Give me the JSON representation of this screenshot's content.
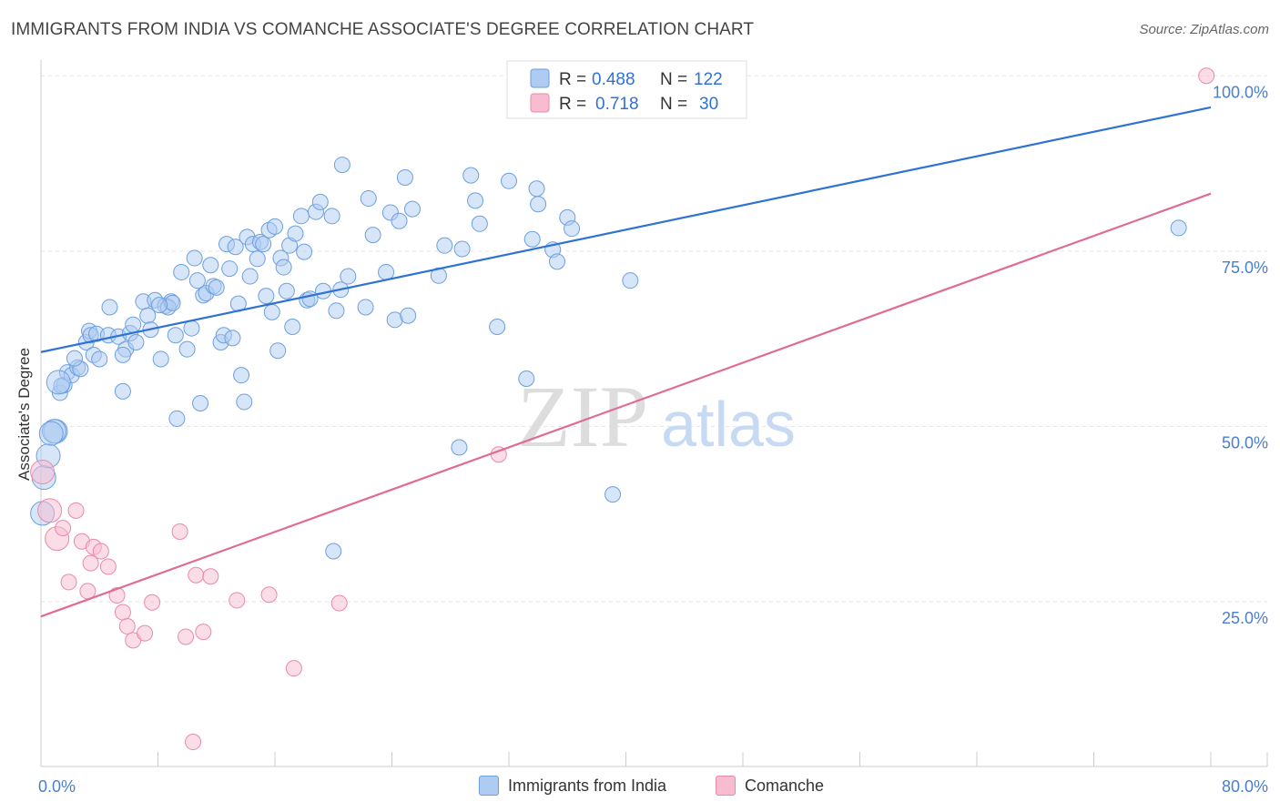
{
  "header": {
    "title": "IMMIGRANTS FROM INDIA VS COMANCHE ASSOCIATE'S DEGREE CORRELATION CHART",
    "source": "Source: ZipAtlas.com"
  },
  "watermark": {
    "zip": "ZIP",
    "atlas": "atlas"
  },
  "colors": {
    "india_fill": "#aecbf2",
    "india_stroke": "#6d9fe0",
    "india_line": "#2f72d4",
    "comanche_fill": "#f8bcd0",
    "comanche_stroke": "#e98aa9",
    "comanche_line": "#e06b94",
    "axis_label": "#4a7fd0"
  },
  "legend": {
    "rows": [
      {
        "r_label": "R =",
        "r_value": "0.488",
        "n_label": "N =",
        "n_value": "122"
      },
      {
        "r_label": "R =",
        "r_value": "0.718",
        "n_label": "N =",
        "n_value": "30"
      }
    ]
  },
  "bottom_legend": [
    "Immigrants from India",
    "Comanche"
  ],
  "chart_data": {
    "type": "scatter",
    "title": "IMMIGRANTS FROM INDIA VS COMANCHE ASSOCIATE'S DEGREE CORRELATION CHART",
    "xlabel": "",
    "ylabel": "Associate's Degree",
    "xlim": [
      0,
      80
    ],
    "ylim": [
      1.5,
      102.5
    ],
    "x_tick_labels": [
      "0.0%",
      "80.0%"
    ],
    "y_tick_labels": [
      "100.0%",
      "75.0%",
      "50.0%",
      "25.0%"
    ],
    "y_ticks": [
      100,
      75,
      50,
      25
    ],
    "grid": "horizontal dashed",
    "legend_position": "top-center",
    "series": [
      {
        "name": "Immigrants from India",
        "r": 0.488,
        "n": 122,
        "trend": {
          "x": [
            0,
            80
          ],
          "y": [
            60.6,
            95.5
          ]
        },
        "points": [
          [
            0.1,
            37.6
          ],
          [
            0.2,
            42.7
          ],
          [
            0.5,
            45.8
          ],
          [
            1.0,
            49.3
          ],
          [
            0.9,
            49.3
          ],
          [
            1.3,
            54.8
          ],
          [
            1.6,
            55.9
          ],
          [
            1.4,
            55.8
          ],
          [
            1.8,
            57.7
          ],
          [
            2.1,
            57.3
          ],
          [
            2.5,
            58.4
          ],
          [
            2.7,
            58.2
          ],
          [
            2.3,
            59.7
          ],
          [
            3.1,
            62.0
          ],
          [
            3.6,
            60.2
          ],
          [
            3.3,
            63.6
          ],
          [
            3.4,
            63.0
          ],
          [
            3.8,
            63.2
          ],
          [
            4.0,
            59.6
          ],
          [
            4.6,
            63.0
          ],
          [
            5.3,
            62.8
          ],
          [
            5.8,
            61.0
          ],
          [
            4.7,
            67.0
          ],
          [
            5.6,
            60.2
          ],
          [
            6.1,
            63.3
          ],
          [
            6.3,
            64.5
          ],
          [
            6.5,
            62.0
          ],
          [
            7.0,
            67.8
          ],
          [
            7.3,
            65.8
          ],
          [
            7.5,
            63.8
          ],
          [
            7.8,
            68.0
          ],
          [
            8.2,
            59.6
          ],
          [
            8.5,
            67.2
          ],
          [
            8.9,
            67.8
          ],
          [
            8.7,
            67.0
          ],
          [
            9.0,
            67.6
          ],
          [
            9.2,
            63.0
          ],
          [
            9.6,
            72.0
          ],
          [
            10.0,
            61.0
          ],
          [
            10.3,
            64.0
          ],
          [
            10.5,
            74.0
          ],
          [
            10.7,
            70.8
          ],
          [
            10.9,
            53.3
          ],
          [
            11.1,
            68.7
          ],
          [
            11.3,
            69.0
          ],
          [
            11.6,
            73.0
          ],
          [
            11.8,
            70.0
          ],
          [
            12.0,
            69.8
          ],
          [
            12.3,
            62.0
          ],
          [
            12.5,
            63.0
          ],
          [
            12.7,
            76.0
          ],
          [
            12.9,
            72.5
          ],
          [
            13.1,
            62.6
          ],
          [
            13.3,
            75.6
          ],
          [
            13.5,
            67.5
          ],
          [
            13.7,
            57.3
          ],
          [
            13.9,
            53.5
          ],
          [
            14.1,
            77.0
          ],
          [
            14.3,
            71.4
          ],
          [
            14.5,
            76.0
          ],
          [
            14.8,
            73.9
          ],
          [
            15.0,
            76.3
          ],
          [
            15.2,
            76.0
          ],
          [
            15.4,
            68.6
          ],
          [
            15.6,
            78.0
          ],
          [
            15.8,
            66.3
          ],
          [
            16.0,
            78.5
          ],
          [
            16.2,
            60.8
          ],
          [
            16.4,
            74.0
          ],
          [
            16.6,
            72.7
          ],
          [
            16.8,
            69.3
          ],
          [
            17.0,
            75.8
          ],
          [
            17.2,
            64.2
          ],
          [
            17.4,
            77.5
          ],
          [
            17.8,
            80.0
          ],
          [
            18.0,
            74.9
          ],
          [
            18.2,
            68.0
          ],
          [
            18.4,
            68.2
          ],
          [
            18.8,
            80.6
          ],
          [
            19.1,
            82.0
          ],
          [
            19.3,
            69.3
          ],
          [
            19.9,
            80.0
          ],
          [
            20.2,
            66.5
          ],
          [
            20.6,
            87.3
          ],
          [
            21.0,
            71.4
          ],
          [
            22.2,
            67.0
          ],
          [
            22.4,
            82.5
          ],
          [
            22.7,
            77.3
          ],
          [
            23.6,
            72.0
          ],
          [
            23.9,
            80.5
          ],
          [
            24.2,
            65.2
          ],
          [
            24.5,
            79.3
          ],
          [
            24.9,
            85.5
          ],
          [
            25.1,
            65.8
          ],
          [
            25.4,
            81.0
          ],
          [
            27.2,
            71.5
          ],
          [
            27.6,
            75.8
          ],
          [
            28.6,
            47.0
          ],
          [
            28.8,
            75.3
          ],
          [
            29.4,
            85.8
          ],
          [
            29.7,
            82.2
          ],
          [
            30.0,
            78.9
          ],
          [
            31.2,
            64.2
          ],
          [
            32.0,
            85.0
          ],
          [
            33.2,
            56.8
          ],
          [
            33.6,
            76.7
          ],
          [
            33.9,
            83.9
          ],
          [
            34.0,
            81.7
          ],
          [
            35.0,
            75.2
          ],
          [
            35.3,
            73.5
          ],
          [
            36.0,
            79.8
          ],
          [
            36.3,
            78.2
          ],
          [
            39.1,
            40.3
          ],
          [
            40.3,
            70.8
          ],
          [
            20.0,
            32.2
          ],
          [
            9.3,
            51.1
          ],
          [
            5.6,
            55.0
          ],
          [
            1.2,
            56.3
          ],
          [
            0.7,
            49.0
          ],
          [
            8.1,
            67.3
          ],
          [
            77.8,
            78.3
          ],
          [
            20.5,
            69.5
          ]
        ]
      },
      {
        "name": "Comanche",
        "r": 0.718,
        "n": 30,
        "trend": {
          "x": [
            0,
            80
          ],
          "y": [
            22.9,
            83.2
          ]
        },
        "points": [
          [
            0.1,
            43.5
          ],
          [
            0.6,
            38.0
          ],
          [
            1.1,
            34.0
          ],
          [
            1.5,
            35.5
          ],
          [
            1.9,
            27.8
          ],
          [
            2.4,
            38.0
          ],
          [
            2.8,
            33.6
          ],
          [
            3.2,
            26.5
          ],
          [
            3.4,
            30.5
          ],
          [
            3.6,
            32.8
          ],
          [
            4.1,
            32.2
          ],
          [
            4.6,
            30.0
          ],
          [
            5.2,
            25.9
          ],
          [
            5.6,
            23.5
          ],
          [
            5.9,
            21.5
          ],
          [
            6.3,
            19.5
          ],
          [
            7.1,
            20.5
          ],
          [
            7.6,
            24.9
          ],
          [
            9.5,
            35.0
          ],
          [
            9.9,
            20.0
          ],
          [
            10.4,
            5.0
          ],
          [
            10.6,
            28.8
          ],
          [
            11.1,
            20.7
          ],
          [
            11.6,
            28.6
          ],
          [
            13.4,
            25.2
          ],
          [
            15.6,
            26.0
          ],
          [
            17.3,
            15.5
          ],
          [
            20.4,
            24.8
          ],
          [
            31.3,
            46.0
          ],
          [
            79.7,
            100.0
          ]
        ]
      }
    ]
  }
}
